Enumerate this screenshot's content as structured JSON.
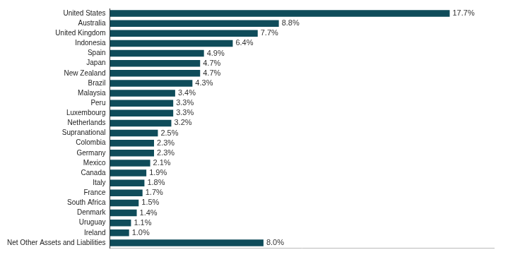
{
  "chart_data": {
    "type": "bar",
    "orientation": "horizontal",
    "categories": [
      "United States",
      "Australia",
      "United Kingdom",
      "Indonesia",
      "Spain",
      "Japan",
      "New Zealand",
      "Brazil",
      "Malaysia",
      "Peru",
      "Luxembourg",
      "Netherlands",
      "Supranational",
      "Colombia",
      "Germany",
      "Mexico",
      "Canada",
      "Italy",
      "France",
      "South Africa",
      "Denmark",
      "Uruguay",
      "Ireland",
      "Net Other Assets and Liabilities"
    ],
    "values": [
      17.7,
      8.8,
      7.7,
      6.4,
      4.9,
      4.7,
      4.7,
      4.3,
      3.4,
      3.3,
      3.3,
      3.2,
      2.5,
      2.3,
      2.3,
      2.1,
      1.9,
      1.8,
      1.7,
      1.5,
      1.4,
      1.1,
      1.0,
      8.0
    ],
    "value_labels": [
      "17.7%",
      "8.8%",
      "7.7%",
      "6.4%",
      "4.9%",
      "4.7%",
      "4.7%",
      "4.3%",
      "3.4%",
      "3.3%",
      "3.3%",
      "3.2%",
      "2.5%",
      "2.3%",
      "2.3%",
      "2.1%",
      "1.9%",
      "1.8%",
      "1.7%",
      "1.5%",
      "1.4%",
      "1.1%",
      "1.0%",
      "8.0%"
    ],
    "color": "#0f4c5a",
    "xlim": [
      0,
      20
    ],
    "grid": false,
    "data_labels": true,
    "tick_labels": "y"
  }
}
